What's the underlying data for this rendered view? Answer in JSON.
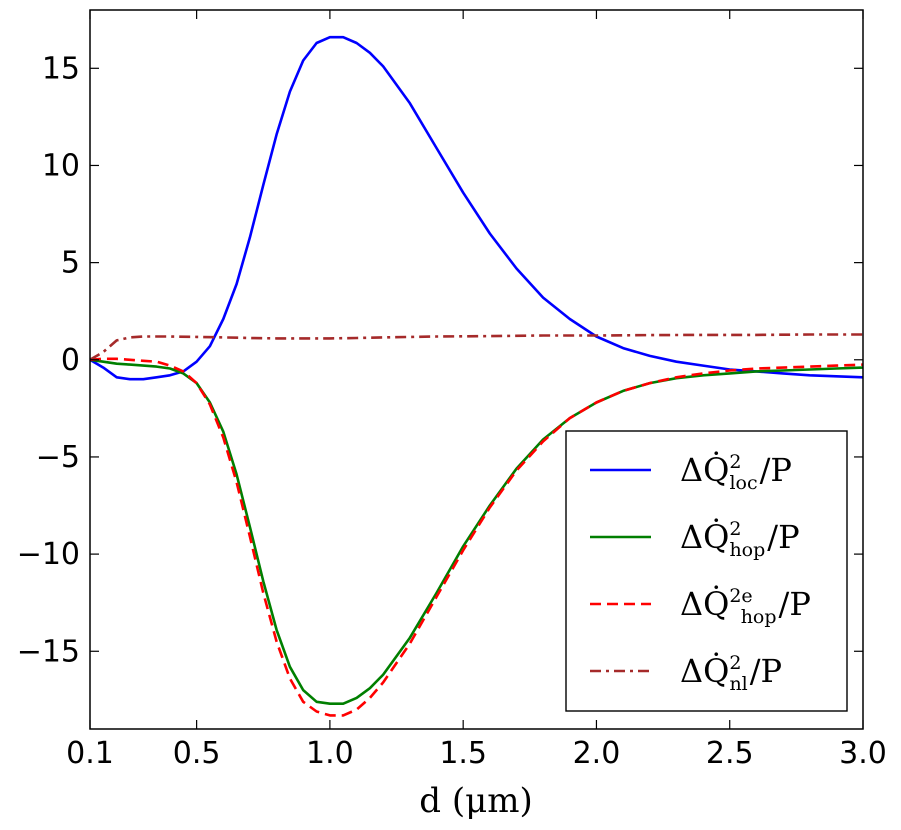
{
  "chart_data": {
    "type": "line",
    "title": "",
    "xlabel": "d (μm)",
    "ylabel": "",
    "xlim": [
      0.1,
      3.0
    ],
    "ylim": [
      -19,
      18
    ],
    "xticks": [
      0.1,
      0.5,
      1.0,
      1.5,
      2.0,
      2.5,
      3.0
    ],
    "xtick_labels": [
      "0.1",
      "0.5",
      "1.0",
      "1.5",
      "2.0",
      "2.5",
      "3.0"
    ],
    "yticks": [
      15,
      10,
      5,
      0,
      -5,
      -10,
      -15
    ],
    "ytick_labels": [
      "15",
      "10",
      "5",
      "0",
      "−5",
      "−10",
      "−15"
    ],
    "grid": false,
    "legend_position": "lower-right",
    "series": [
      {
        "name": "ΔQ̇²_loc / P",
        "legend": {
          "base": "ΔQ̇",
          "sup": "2",
          "sub": "loc",
          "suffix": "/P"
        },
        "color": "#0000ff",
        "style": "solid",
        "x": [
          0.1,
          0.15,
          0.2,
          0.25,
          0.3,
          0.35,
          0.4,
          0.45,
          0.5,
          0.55,
          0.6,
          0.65,
          0.7,
          0.75,
          0.8,
          0.85,
          0.9,
          0.95,
          1.0,
          1.05,
          1.1,
          1.15,
          1.2,
          1.3,
          1.4,
          1.5,
          1.6,
          1.7,
          1.8,
          1.9,
          2.0,
          2.1,
          2.2,
          2.3,
          2.4,
          2.5,
          2.6,
          2.7,
          2.8,
          2.9,
          3.0
        ],
        "y": [
          0.0,
          -0.4,
          -0.9,
          -1.0,
          -1.0,
          -0.9,
          -0.8,
          -0.6,
          -0.1,
          0.7,
          2.1,
          3.9,
          6.3,
          9.0,
          11.6,
          13.8,
          15.4,
          16.3,
          16.6,
          16.6,
          16.3,
          15.8,
          15.1,
          13.2,
          10.9,
          8.6,
          6.5,
          4.7,
          3.2,
          2.1,
          1.2,
          0.6,
          0.2,
          -0.1,
          -0.3,
          -0.5,
          -0.6,
          -0.7,
          -0.8,
          -0.85,
          -0.9
        ]
      },
      {
        "name": "ΔQ̇²_hop / P",
        "legend": {
          "base": "ΔQ̇",
          "sup": "2",
          "sub": "hop",
          "suffix": "/P"
        },
        "color": "#007f00",
        "style": "solid",
        "x": [
          0.1,
          0.15,
          0.2,
          0.25,
          0.3,
          0.35,
          0.4,
          0.45,
          0.5,
          0.55,
          0.6,
          0.65,
          0.7,
          0.75,
          0.8,
          0.85,
          0.9,
          0.95,
          1.0,
          1.05,
          1.1,
          1.15,
          1.2,
          1.3,
          1.4,
          1.5,
          1.6,
          1.7,
          1.8,
          1.9,
          2.0,
          2.1,
          2.2,
          2.3,
          2.4,
          2.5,
          2.6,
          2.7,
          2.8,
          2.9,
          3.0
        ],
        "y": [
          0.0,
          -0.1,
          -0.2,
          -0.25,
          -0.3,
          -0.35,
          -0.45,
          -0.7,
          -1.2,
          -2.2,
          -3.7,
          -5.9,
          -8.6,
          -11.4,
          -13.9,
          -15.8,
          -17.0,
          -17.6,
          -17.7,
          -17.7,
          -17.4,
          -16.9,
          -16.2,
          -14.3,
          -12.0,
          -9.6,
          -7.5,
          -5.6,
          -4.1,
          -3.0,
          -2.2,
          -1.6,
          -1.2,
          -0.95,
          -0.8,
          -0.7,
          -0.6,
          -0.55,
          -0.5,
          -0.45,
          -0.4
        ]
      },
      {
        "name": "ΔQ̇²ᵉ_hop / P",
        "legend": {
          "base": "ΔQ̇",
          "sup": "2e",
          "sub": "hop",
          "suffix": "/P"
        },
        "color": "#ff0000",
        "style": "dashed",
        "x": [
          0.1,
          0.15,
          0.2,
          0.25,
          0.3,
          0.35,
          0.4,
          0.45,
          0.5,
          0.55,
          0.6,
          0.65,
          0.7,
          0.75,
          0.8,
          0.85,
          0.9,
          0.95,
          1.0,
          1.05,
          1.1,
          1.15,
          1.2,
          1.3,
          1.4,
          1.5,
          1.6,
          1.7,
          1.8,
          1.9,
          2.0,
          2.1,
          2.2,
          2.3,
          2.4,
          2.5,
          2.6,
          2.7,
          2.8,
          2.9,
          3.0
        ],
        "y": [
          0.0,
          0.05,
          0.05,
          0.0,
          -0.05,
          -0.1,
          -0.3,
          -0.6,
          -1.2,
          -2.3,
          -4.0,
          -6.3,
          -9.1,
          -12.0,
          -14.5,
          -16.4,
          -17.6,
          -18.1,
          -18.3,
          -18.3,
          -18.0,
          -17.4,
          -16.6,
          -14.6,
          -12.2,
          -9.8,
          -7.6,
          -5.7,
          -4.2,
          -3.0,
          -2.2,
          -1.6,
          -1.2,
          -0.9,
          -0.7,
          -0.55,
          -0.45,
          -0.4,
          -0.35,
          -0.3,
          -0.25
        ]
      },
      {
        "name": "ΔQ̇²_nl / P",
        "legend": {
          "base": "ΔQ̇",
          "sup": "2",
          "sub": "nl",
          "suffix": "/P"
        },
        "color": "#a52a2a",
        "style": "dashdot",
        "x": [
          0.1,
          0.15,
          0.2,
          0.25,
          0.3,
          0.35,
          0.4,
          0.5,
          0.6,
          0.7,
          0.8,
          0.9,
          1.0,
          1.1,
          1.2,
          1.4,
          1.6,
          1.8,
          2.0,
          2.2,
          2.4,
          2.6,
          2.8,
          3.0
        ],
        "y": [
          0.0,
          0.4,
          1.0,
          1.15,
          1.2,
          1.2,
          1.2,
          1.18,
          1.15,
          1.12,
          1.1,
          1.1,
          1.1,
          1.12,
          1.15,
          1.2,
          1.22,
          1.25,
          1.25,
          1.27,
          1.28,
          1.28,
          1.3,
          1.3
        ]
      }
    ]
  }
}
